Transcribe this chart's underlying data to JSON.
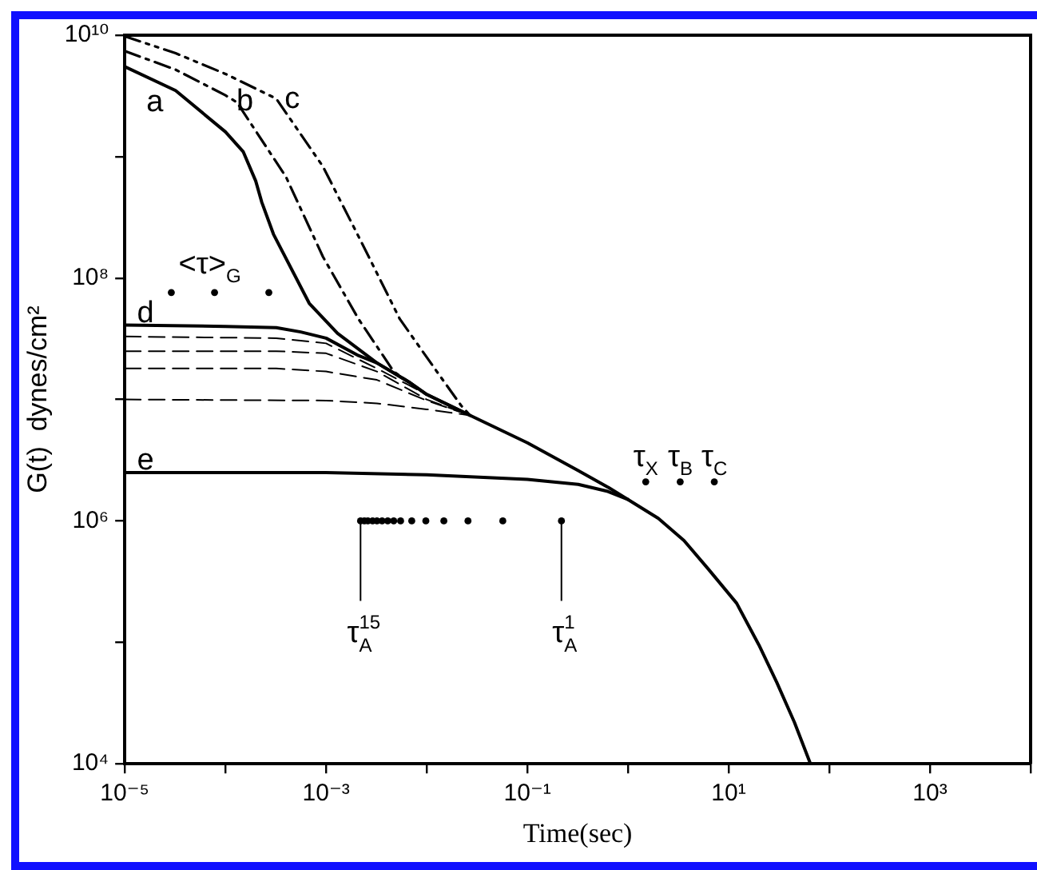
{
  "chart_data": {
    "type": "line",
    "log": "xy",
    "xlabel": "Time(sec)",
    "ylabel": "G(t)  dynes/cm²",
    "xlim": [
      1e-05,
      10000.0
    ],
    "ylim": [
      10000.0,
      10000000000.0
    ],
    "xticks": [
      {
        "value": 1e-05,
        "label": "10⁻⁵"
      },
      {
        "value": 0.0001,
        "label": null
      },
      {
        "value": 0.001,
        "label": "10⁻³"
      },
      {
        "value": 0.01,
        "label": null
      },
      {
        "value": 0.1,
        "label": "10⁻¹"
      },
      {
        "value": 1,
        "label": null
      },
      {
        "value": 10,
        "label": "10¹"
      },
      {
        "value": 100,
        "label": null
      },
      {
        "value": 1000,
        "label": "10³"
      },
      {
        "value": 10000,
        "label": null
      }
    ],
    "yticks": [
      {
        "value": 10000.0,
        "label": "10⁴"
      },
      {
        "value": 100000.0,
        "label": null
      },
      {
        "value": 1000000.0,
        "label": "10⁶"
      },
      {
        "value": 10000000.0,
        "label": null
      },
      {
        "value": 100000000.0,
        "label": "10⁸"
      },
      {
        "value": 1000000000.0,
        "label": null
      },
      {
        "value": 10000000000.0,
        "label": "10¹⁰"
      }
    ],
    "grid": false,
    "legend": false,
    "series": [
      {
        "color": "#000000",
        "line_style": "solid",
        "marker": "none",
        "x": [
          1e-05,
          3.2e-05,
          0.0001,
          0.00015,
          0.0002,
          0.00023,
          0.0003,
          0.00068,
          0.0013,
          0.0032,
          0.0066,
          0.01,
          0.027
        ],
        "values": [
          5500000000.0,
          3500000000.0,
          1600000000.0,
          1100000000.0,
          630000000.0,
          420000000.0,
          230000000.0,
          62000000.0,
          35000000.0,
          20000000.0,
          14000000.0,
          11000000.0,
          7400000.0
        ]
      },
      {
        "color": "#000000",
        "line_style": "dashdot",
        "marker": "none",
        "x": [
          1e-05,
          3.2e-05,
          0.0001,
          0.00013,
          0.0004,
          0.00093,
          0.0021,
          0.0047,
          0.01
        ],
        "values": [
          7400000000.0,
          5200000000.0,
          3200000000.0,
          2800000000.0,
          680000000.0,
          150000000.0,
          46000000.0,
          17000000.0,
          11000000.0
        ]
      },
      {
        "color": "#000000",
        "line_style": "dashdotdot",
        "marker": "none",
        "x": [
          1e-05,
          3.2e-05,
          0.0001,
          0.00032,
          0.00093,
          0.0023,
          0.0054,
          0.012,
          0.022,
          0.027
        ],
        "values": [
          9800000000.0,
          7100000000.0,
          4800000000.0,
          3000000000.0,
          830000000.0,
          190000000.0,
          46000000.0,
          18000000.0,
          8900000.0,
          7400000.0
        ]
      },
      {
        "color": "#000000",
        "line_style": "solid",
        "marker": "none",
        "x": [
          1e-05,
          0.0001,
          0.00032,
          0.00056,
          0.001,
          0.0021,
          0.0032,
          0.0066,
          0.01,
          0.027,
          0.1,
          0.32,
          0.63,
          1
        ],
        "values": [
          41000000.0,
          40000000.0,
          39000000.0,
          36000000.0,
          32000000.0,
          23000000.0,
          20000000.0,
          14000000.0,
          11000000.0,
          7400000.0,
          4400000.0,
          2600000.0,
          1900000.0,
          1500000.0
        ]
      },
      {
        "color": "#000000",
        "line_style": "dashed",
        "marker": "none",
        "x": [
          1e-05,
          0.00032,
          0.001,
          0.0032,
          0.01,
          0.027
        ],
        "values": [
          33000000.0,
          32000000.0,
          29000000.0,
          18000000.0,
          11000000.0,
          7400000.0
        ]
      },
      {
        "color": "#000000",
        "line_style": "dashed",
        "marker": "none",
        "x": [
          1e-05,
          0.00032,
          0.001,
          0.0032,
          0.01,
          0.027
        ],
        "values": [
          25000000.0,
          25000000.0,
          24000000.0,
          17000000.0,
          10000000.0,
          7400000.0
        ]
      },
      {
        "color": "#000000",
        "line_style": "dashed",
        "marker": "none",
        "x": [
          1e-05,
          0.00032,
          0.001,
          0.0032,
          0.01,
          0.027
        ],
        "values": [
          18000000.0,
          18000000.0,
          17000000.0,
          14500000.0,
          9800000.0,
          7400000.0
        ]
      },
      {
        "color": "#000000",
        "line_style": "dashed",
        "marker": "none",
        "x": [
          1e-05,
          0.001,
          0.0032,
          0.01,
          0.027
        ],
        "values": [
          10000000.0,
          9800000.0,
          9300000.0,
          8300000.0,
          7400000.0
        ]
      },
      {
        "color": "#000000",
        "line_style": "solid",
        "marker": "none",
        "x": [
          1e-05,
          0.001,
          0.01,
          0.1,
          0.32,
          0.63,
          1,
          2,
          3.6,
          6.3,
          12,
          20,
          30,
          45,
          65
        ],
        "values": [
          2500000.0,
          2500000.0,
          2400000.0,
          2200000.0,
          2000000.0,
          1750000.0,
          1500000.0,
          1050000.0,
          690000.0,
          400000.0,
          210000.0,
          95000.0,
          47000.0,
          22000.0,
          10000.0
        ]
      },
      {
        "type": "scatter",
        "color": "#000000",
        "marker": "circle",
        "x": [
          2.9e-05,
          7.8e-05,
          0.00027
        ],
        "values": [
          76000000.0,
          76000000.0,
          76000000.0
        ]
      },
      {
        "type": "scatter",
        "color": "#000000",
        "marker": "circle",
        "x": [
          0.0022,
          0.0024,
          0.0026,
          0.0029,
          0.0032,
          0.0036,
          0.0041,
          0.0047,
          0.0055,
          0.0071,
          0.0098,
          0.0148,
          0.0257,
          0.057,
          0.218
        ],
        "values": [
          1000000.0,
          1000000.0,
          1000000.0,
          1000000.0,
          1000000.0,
          1000000.0,
          1000000.0,
          1000000.0,
          1000000.0,
          1000000.0,
          1000000.0,
          1000000.0,
          1000000.0,
          1000000.0,
          1000000.0
        ]
      },
      {
        "type": "scatter",
        "color": "#000000",
        "marker": "circle",
        "x": [
          1.5,
          3.3,
          7.2
        ],
        "values": [
          2100000.0,
          2100000.0,
          2100000.0
        ]
      }
    ],
    "annotations": [
      {
        "text": "a",
        "x": 3.2e-05,
        "y": 3500000000.0
      },
      {
        "text": "b",
        "x": 0.00013,
        "y": 2800000000.0
      },
      {
        "text": "c",
        "x": 0.00032,
        "y": 3000000000.0
      },
      {
        "text": "d",
        "x": 1e-05,
        "y": 41000000.0
      },
      {
        "text": "e",
        "x": 1e-05,
        "y": 2500000.0
      },
      {
        "text": "<τ>$_{G}$",
        "x": 7.8e-05,
        "y": 76000000.0
      },
      {
        "text": "τ$_{X}$",
        "x": 1.5,
        "y": 2100000.0
      },
      {
        "text": "τ$_{B}$",
        "x": 3.3,
        "y": 2100000.0
      },
      {
        "text": "τ$_{C}$",
        "x": 7.2,
        "y": 2100000.0
      },
      {
        "text": "τ$^{15}$$_{A}$",
        "x": 0.0022,
        "y": 1000000.0
      },
      {
        "text": "τ$^{1}$$_{A}$",
        "x": 0.218,
        "y": 1000000.0
      }
    ]
  }
}
